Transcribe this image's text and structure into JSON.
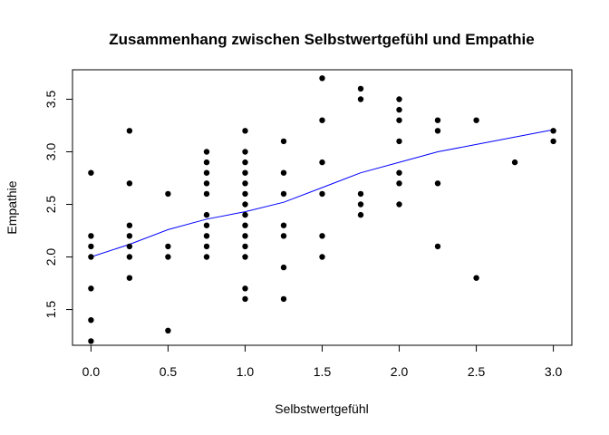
{
  "chart_data": {
    "type": "scatter",
    "title": "Zusammenhang zwischen Selbstwertgefühl und Empathie",
    "xlabel": "Selbstwertgefühl",
    "ylabel": "Empathie",
    "xlim": [
      -0.12,
      3.12
    ],
    "ylim": [
      1.16,
      3.78
    ],
    "x_ticks": [
      "0.0",
      "0.5",
      "1.0",
      "1.5",
      "2.0",
      "2.5",
      "3.0"
    ],
    "y_ticks": [
      "1.5",
      "2.0",
      "2.5",
      "3.0",
      "3.5"
    ],
    "grid": false,
    "colors": {
      "points": "#000000",
      "smooth_line": "#0000ff"
    },
    "series": [
      {
        "points": [
          [
            0.0,
            1.2
          ],
          [
            0.0,
            1.4
          ],
          [
            0.0,
            1.7
          ],
          [
            0.0,
            2.0
          ],
          [
            0.0,
            2.1
          ],
          [
            0.0,
            2.2
          ],
          [
            0.0,
            2.8
          ],
          [
            0.25,
            1.8
          ],
          [
            0.25,
            2.0
          ],
          [
            0.25,
            2.1
          ],
          [
            0.25,
            2.2
          ],
          [
            0.25,
            2.3
          ],
          [
            0.25,
            2.7
          ],
          [
            0.25,
            3.2
          ],
          [
            0.5,
            1.3
          ],
          [
            0.5,
            2.0
          ],
          [
            0.5,
            2.1
          ],
          [
            0.5,
            2.6
          ],
          [
            0.75,
            2.0
          ],
          [
            0.75,
            2.1
          ],
          [
            0.75,
            2.2
          ],
          [
            0.75,
            2.3
          ],
          [
            0.75,
            2.4
          ],
          [
            0.75,
            2.6
          ],
          [
            0.75,
            2.7
          ],
          [
            0.75,
            2.8
          ],
          [
            0.75,
            2.9
          ],
          [
            0.75,
            3.0
          ],
          [
            1.0,
            1.6
          ],
          [
            1.0,
            1.7
          ],
          [
            1.0,
            2.0
          ],
          [
            1.0,
            2.1
          ],
          [
            1.0,
            2.2
          ],
          [
            1.0,
            2.3
          ],
          [
            1.0,
            2.4
          ],
          [
            1.0,
            2.5
          ],
          [
            1.0,
            2.6
          ],
          [
            1.0,
            2.7
          ],
          [
            1.0,
            2.8
          ],
          [
            1.0,
            2.9
          ],
          [
            1.0,
            3.0
          ],
          [
            1.0,
            3.2
          ],
          [
            1.25,
            1.6
          ],
          [
            1.25,
            1.9
          ],
          [
            1.25,
            2.2
          ],
          [
            1.25,
            2.3
          ],
          [
            1.25,
            2.6
          ],
          [
            1.25,
            2.8
          ],
          [
            1.25,
            3.1
          ],
          [
            1.5,
            2.0
          ],
          [
            1.5,
            2.2
          ],
          [
            1.5,
            2.6
          ],
          [
            1.5,
            2.9
          ],
          [
            1.5,
            3.3
          ],
          [
            1.5,
            3.7
          ],
          [
            1.75,
            2.4
          ],
          [
            1.75,
            2.5
          ],
          [
            1.75,
            2.6
          ],
          [
            1.75,
            3.5
          ],
          [
            1.75,
            3.6
          ],
          [
            2.0,
            2.5
          ],
          [
            2.0,
            2.7
          ],
          [
            2.0,
            2.8
          ],
          [
            2.0,
            3.1
          ],
          [
            2.0,
            3.3
          ],
          [
            2.0,
            3.4
          ],
          [
            2.0,
            3.5
          ],
          [
            2.25,
            2.1
          ],
          [
            2.25,
            2.7
          ],
          [
            2.25,
            3.2
          ],
          [
            2.25,
            3.3
          ],
          [
            2.5,
            1.8
          ],
          [
            2.5,
            3.3
          ],
          [
            2.75,
            2.9
          ],
          [
            3.0,
            3.1
          ],
          [
            3.0,
            3.2
          ]
        ]
      }
    ],
    "smooth_line": [
      [
        0.0,
        2.0
      ],
      [
        0.25,
        2.12
      ],
      [
        0.5,
        2.26
      ],
      [
        0.75,
        2.36
      ],
      [
        1.0,
        2.43
      ],
      [
        1.25,
        2.52
      ],
      [
        1.5,
        2.66
      ],
      [
        1.75,
        2.8
      ],
      [
        2.0,
        2.9
      ],
      [
        2.25,
        3.0
      ],
      [
        2.5,
        3.07
      ],
      [
        2.75,
        3.14
      ],
      [
        3.0,
        3.21
      ]
    ]
  }
}
